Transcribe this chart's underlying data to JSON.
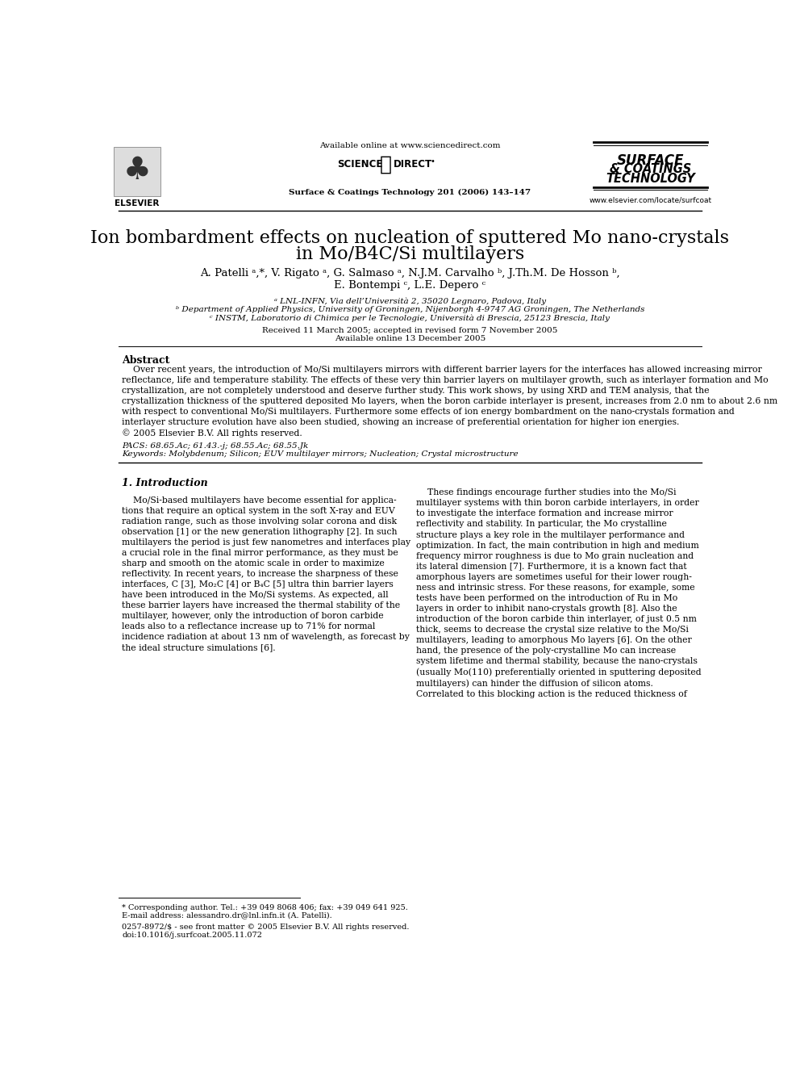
{
  "bg_color": "#ffffff",
  "text_color": "#000000",
  "available_online": "Available online at www.sciencedirect.com",
  "journal_info": "Surface & Coatings Technology 201 (2006) 143–147",
  "journal_url": "www.elsevier.com/locate/surfcoat",
  "elsevier_text": "ELSEVIER",
  "title_line1": "Ion bombardment effects on nucleation of sputtered Mo nano-crystals",
  "title_line2": "in Mo/B4C/Si multilayers",
  "authors": "A. Patelli ᵃ,*, V. Rigato ᵃ, G. Salmaso ᵃ, N.J.M. Carvalho ᵇ, J.Th.M. De Hosson ᵇ,",
  "authors2": "E. Bontempi ᶜ, L.E. Depero ᶜ",
  "affil_a": "ᵃ LNL-INFN, Via dell’Università 2, 35020 Legnaro, Padova, Italy",
  "affil_b": "ᵇ Department of Applied Physics, University of Groningen, Nijenborgh 4-9747 AG Groningen, The Netherlands",
  "affil_c": "ᶜ INSTM, Laboratorio di Chimica per le Tecnologie, Università di Brescia, 25123 Brescia, Italy",
  "received": "Received 11 March 2005; accepted in revised form 7 November 2005",
  "available": "Available online 13 December 2005",
  "abstract_title": "Abstract",
  "abstract_text": "    Over recent years, the introduction of Mo/Si multilayers mirrors with different barrier layers for the interfaces has allowed increasing mirror\nreflectance, life and temperature stability. The effects of these very thin barrier layers on multilayer growth, such as interlayer formation and Mo\ncrystallization, are not completely understood and deserve further study. This work shows, by using XRD and TEM analysis, that the\ncrystallization thickness of the sputtered deposited Mo layers, when the boron carbide interlayer is present, increases from 2.0 nm to about 2.6 nm\nwith respect to conventional Mo/Si multilayers. Furthermore some effects of ion energy bombardment on the nano-crystals formation and\ninterlayer structure evolution have also been studied, showing an increase of preferential orientation for higher ion energies.\n© 2005 Elsevier B.V. All rights reserved.",
  "pacs": "PACS: 68.65.Ac; 61.43.-j; 68.55.Ac; 68.55.Jk",
  "keywords": "Keywords: Molybdenum; Silicon; EUV multilayer mirrors; Nucleation; Crystal microstructure",
  "section1_title": "1. Introduction",
  "section1_col1": "    Mo/Si-based multilayers have become essential for applica-\ntions that require an optical system in the soft X-ray and EUV\nradiation range, such as those involving solar corona and disk\nobservation [1] or the new generation lithography [2]. In such\nmultilayers the period is just few nanometres and interfaces play\na crucial role in the final mirror performance, as they must be\nsharp and smooth on the atomic scale in order to maximize\nreflectivity. In recent years, to increase the sharpness of these\ninterfaces, C [3], Mo₂C [4] or B₄C [5] ultra thin barrier layers\nhave been introduced in the Mo/Si systems. As expected, all\nthese barrier layers have increased the thermal stability of the\nmultilayer, however, only the introduction of boron carbide\nleads also to a reflectance increase up to 71% for normal\nincidence radiation at about 13 nm of wavelength, as forecast by\nthe ideal structure simulations [6].",
  "section1_col2": "    These findings encourage further studies into the Mo/Si\nmultilayer systems with thin boron carbide interlayers, in order\nto investigate the interface formation and increase mirror\nreflectivity and stability. In particular, the Mo crystalline\nstructure plays a key role in the multilayer performance and\noptimization. In fact, the main contribution in high and medium\nfrequency mirror roughness is due to Mo grain nucleation and\nits lateral dimension [7]. Furthermore, it is a known fact that\namorphous layers are sometimes useful for their lower rough-\nness and intrinsic stress. For these reasons, for example, some\ntests have been performed on the introduction of Ru in Mo\nlayers in order to inhibit nano-crystals growth [8]. Also the\nintroduction of the boron carbide thin interlayer, of just 0.5 nm\nthick, seems to decrease the crystal size relative to the Mo/Si\nmultilayers, leading to amorphous Mo layers [6]. On the other\nhand, the presence of the poly-crystalline Mo can increase\nsystem lifetime and thermal stability, because the nano-crystals\n(usually Mo(110) preferentially oriented in sputtering deposited\nmultilayers) can hinder the diffusion of silicon atoms.\nCorrelated to this blocking action is the reduced thickness of",
  "footnote_star": "* Corresponding author. Tel.: +39 049 8068 406; fax: +39 049 641 925.",
  "footnote_email": "E-mail address: alessandro.dr@lnl.infn.it (A. Patelli).",
  "footnote_issn": "0257-8972/$ - see front matter © 2005 Elsevier B.V. All rights reserved.",
  "footnote_doi": "doi:10.1016/j.surfcoat.2005.11.072"
}
